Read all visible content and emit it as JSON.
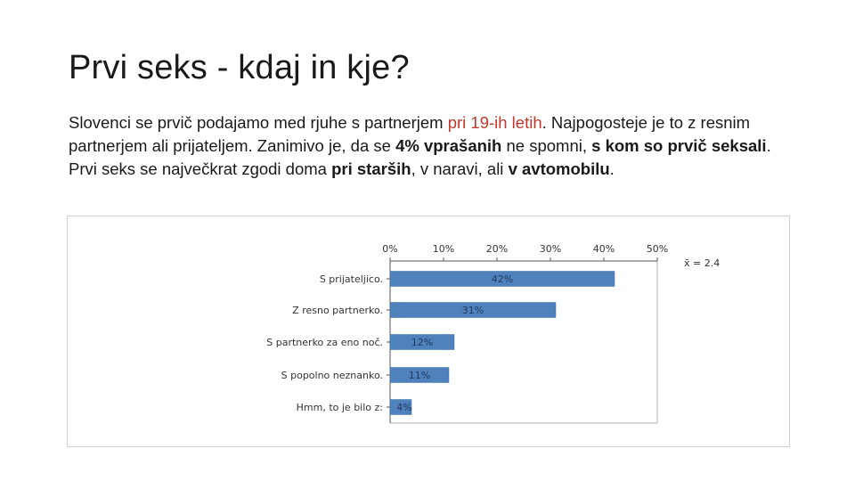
{
  "slide": {
    "title": "Prvi seks - kdaj in kje?",
    "paragraph": {
      "p1": "Slovenci se prvič podajamo med rjuhe s partnerjem ",
      "p2_red": "pri 19-ih letih",
      "p3": ". Najpogosteje je to z resnim partnerjem ali prijateljem. Zanimivo je, da se ",
      "p4_bold": "4% vprašanih",
      "p5": " ne spomni, ",
      "p6_bold": "s kom so prvič seksali",
      "p7": ". Prvi seks se največkrat zgodi doma ",
      "p8_bold": "pri starših",
      "p9": ", v naravi, ali ",
      "p10_bold": "v avtomobilu",
      "p11": "."
    }
  },
  "chart_data": {
    "type": "bar",
    "orientation": "horizontal",
    "categories": [
      "S prijateljico.",
      "Z resno partnerko.",
      "S partnerko za eno noč.",
      "S popolno neznanko.",
      "Hmm,  to je bilo z:"
    ],
    "values": [
      42,
      31,
      12,
      11,
      4
    ],
    "value_labels": [
      "42%",
      "31%",
      "12%",
      "11%",
      "4%"
    ],
    "xlim": [
      0,
      50
    ],
    "x_ticks": [
      "0%",
      "10%",
      "20%",
      "30%",
      "40%",
      "50%"
    ],
    "x_axis_position": "top",
    "grid": false,
    "mean_label": "x̄ = 2.4",
    "bar_color": "#4f81bd"
  }
}
